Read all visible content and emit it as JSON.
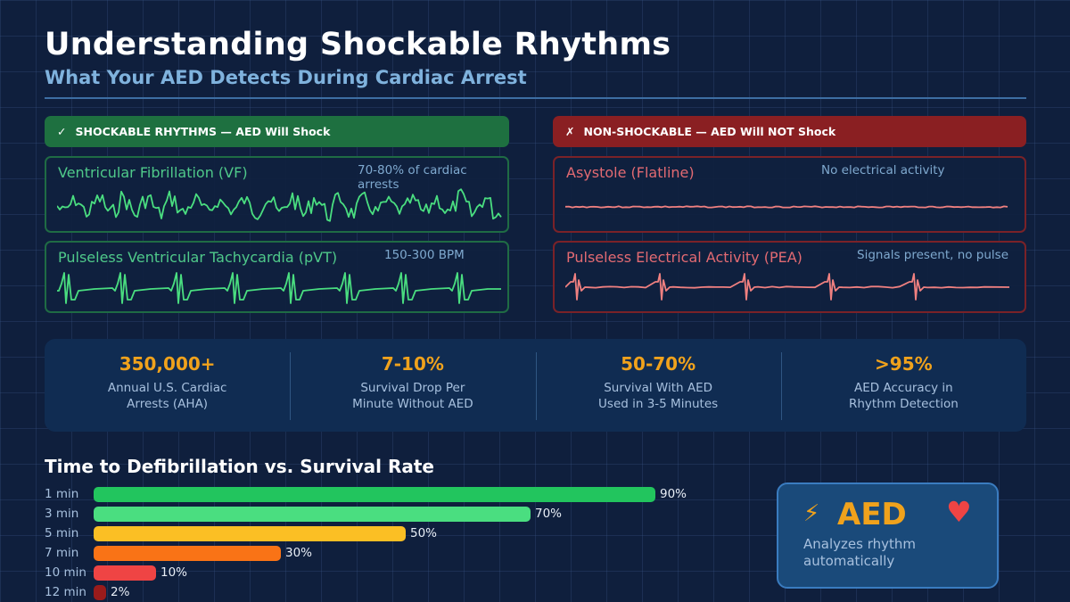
{
  "header": {
    "title": "Understanding Shockable Rhythms",
    "subtitle": "What Your AED Detects During Cardiac Arrest"
  },
  "shockable": {
    "mark": "✓",
    "label": "SHOCKABLE RHYTHMS — AED Will Shock",
    "color": "#1e7040",
    "trace_color": "#4ade80",
    "rhythms": [
      {
        "name": "Ventricular Fibrillation (VF)",
        "note": "70-80% of cardiac arrests",
        "waveform": "chaotic"
      },
      {
        "name": "Pulseless Ventricular Tachycardia (pVT)",
        "note": "150-300 BPM",
        "waveform": "wide-complex-tachycardia"
      }
    ]
  },
  "non_shockable": {
    "mark": "✗",
    "label": "NON-SHOCKABLE — AED Will NOT Shock",
    "color": "#8a1f22",
    "trace_color": "#f08080",
    "rhythms": [
      {
        "name": "Asystole (Flatline)",
        "note": "No electrical activity",
        "waveform": "flatline"
      },
      {
        "name": "Pulseless Electrical Activity (PEA)",
        "note": "Signals present, no pulse",
        "waveform": "organized-complexes"
      }
    ]
  },
  "stats": [
    {
      "value": "350,000+",
      "label_line1": "Annual U.S. Cardiac",
      "label_line2": "Arrests (AHA)"
    },
    {
      "value": "7-10%",
      "label_line1": "Survival Drop Per",
      "label_line2": "Minute Without AED"
    },
    {
      "value": "50-70%",
      "label_line1": "Survival With AED",
      "label_line2": "Used in 3-5 Minutes"
    },
    {
      "value": ">95%",
      "label_line1": "AED Accuracy in",
      "label_line2": "Rhythm Detection"
    }
  ],
  "chart_data": {
    "type": "bar",
    "orientation": "horizontal",
    "title": "Time to Defibrillation vs. Survival Rate",
    "xlabel": "",
    "ylabel": "",
    "categories": [
      "1 min",
      "3 min",
      "5 min",
      "7 min",
      "10 min",
      "12 min"
    ],
    "values": [
      90,
      70,
      50,
      30,
      10,
      2
    ],
    "value_labels": [
      "90%",
      "70%",
      "50%",
      "30%",
      "10%",
      "2%"
    ],
    "colors": [
      "#22c55e",
      "#4ade80",
      "#fbbf24",
      "#f97316",
      "#ef4444",
      "#991b1b"
    ],
    "xlim": [
      0,
      100
    ],
    "grid": false,
    "legend": "none"
  },
  "aed_card": {
    "bolt_icon": "⚡",
    "label": "AED",
    "heart_icon": "♥",
    "desc_line1": "Analyzes rhythm",
    "desc_line2": "automatically"
  }
}
